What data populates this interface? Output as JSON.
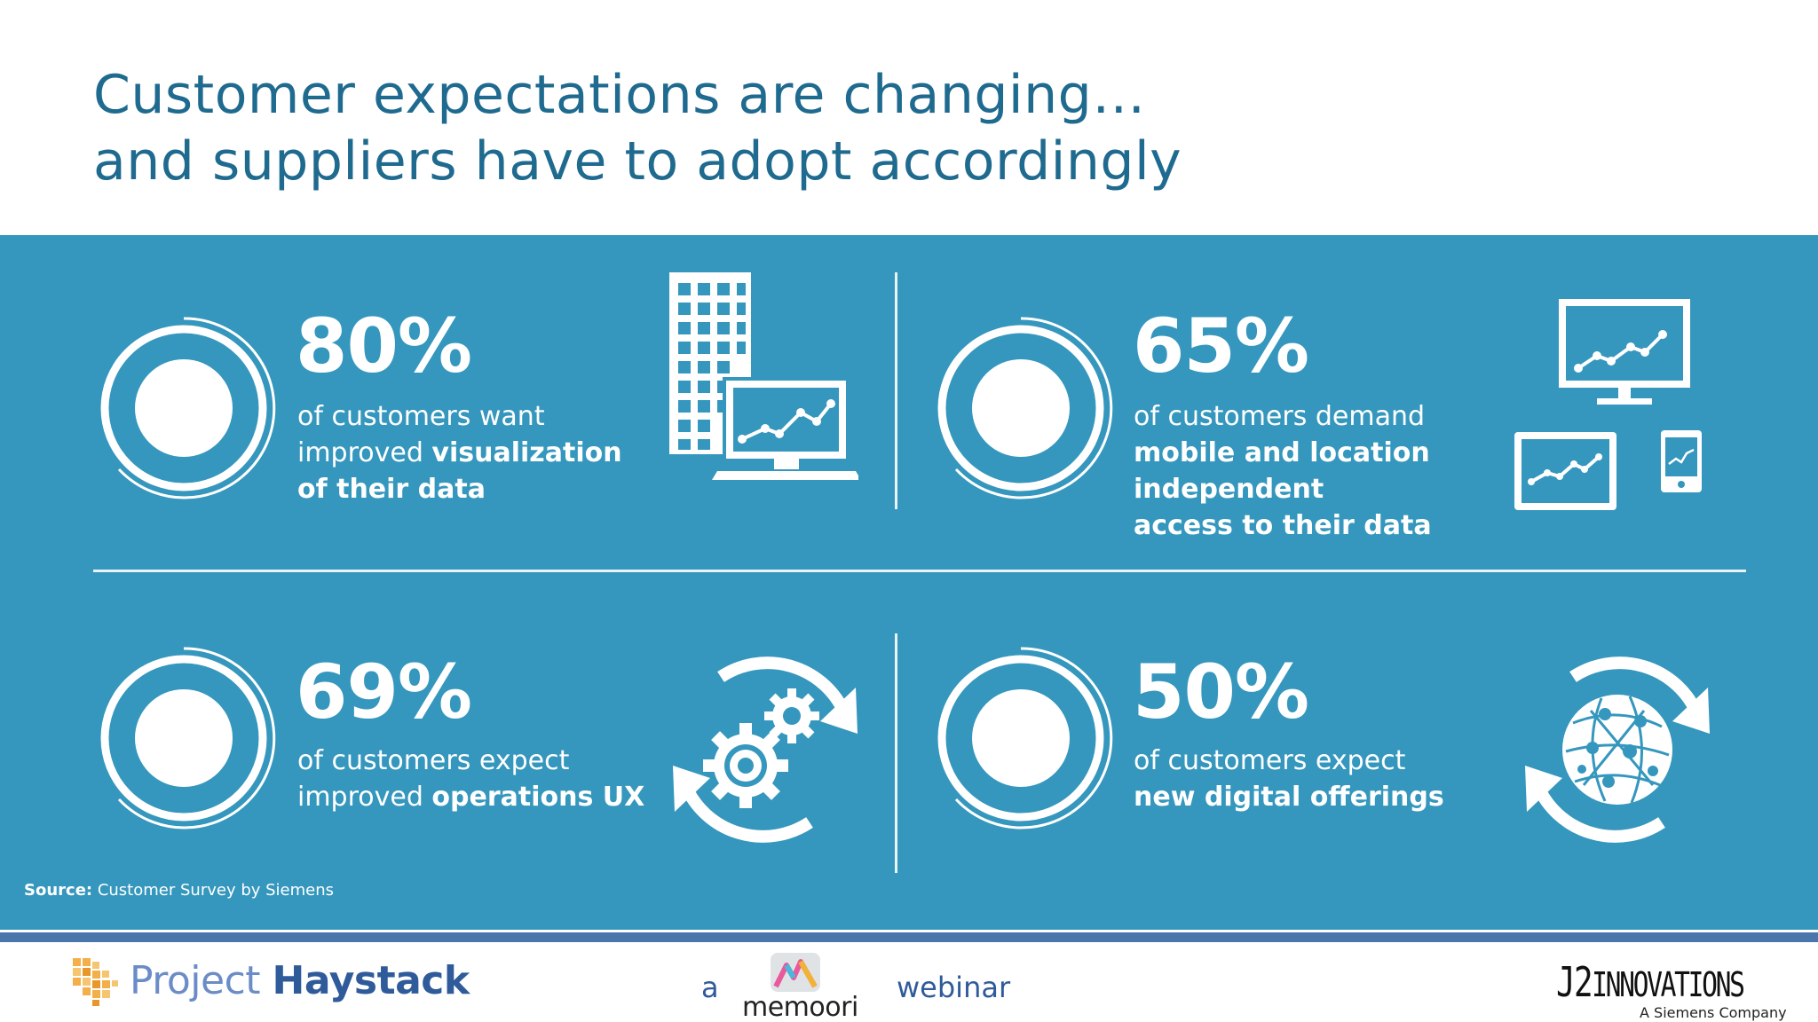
{
  "slide": {
    "title_line1": "Customer expectations are changing…",
    "title_line2": "and suppliers have to adopt accordingly"
  },
  "stats": [
    {
      "percent": "80%",
      "line1": "of customers want",
      "line2_plain": "improved ",
      "line2_bold": "visualization",
      "line3_bold": "of their data",
      "icon": "building-monitor-chart-icon"
    },
    {
      "percent": "65%",
      "line1": "of customers demand",
      "line2_bold": "mobile and location",
      "line3_bold": "independent",
      "line4_bold": "access to their data",
      "icon": "multi-device-chart-icon"
    },
    {
      "percent": "69%",
      "line1": "of customers expect",
      "line2_plain": "improved ",
      "line2_bold": "operations UX",
      "icon": "gears-cycle-icon"
    },
    {
      "percent": "50%",
      "line1": "of customers expect",
      "line2_bold": "new digital offerings",
      "icon": "globe-network-cycle-icon"
    }
  ],
  "source": {
    "label": "Source:",
    "text": " Customer Survey by Siemens"
  },
  "footer": {
    "brand_light": "Project ",
    "brand_bold": "Haystack",
    "a": "a",
    "memoori": "memoori",
    "webinar": "webinar",
    "j2_big": "J2",
    "j2_rest": "INNOVATIONS",
    "j2_sub": "A Siemens Company"
  },
  "colors": {
    "panel": "#3597bd",
    "title": "#1f6a8f",
    "footer_text": "#2f5b9a"
  }
}
